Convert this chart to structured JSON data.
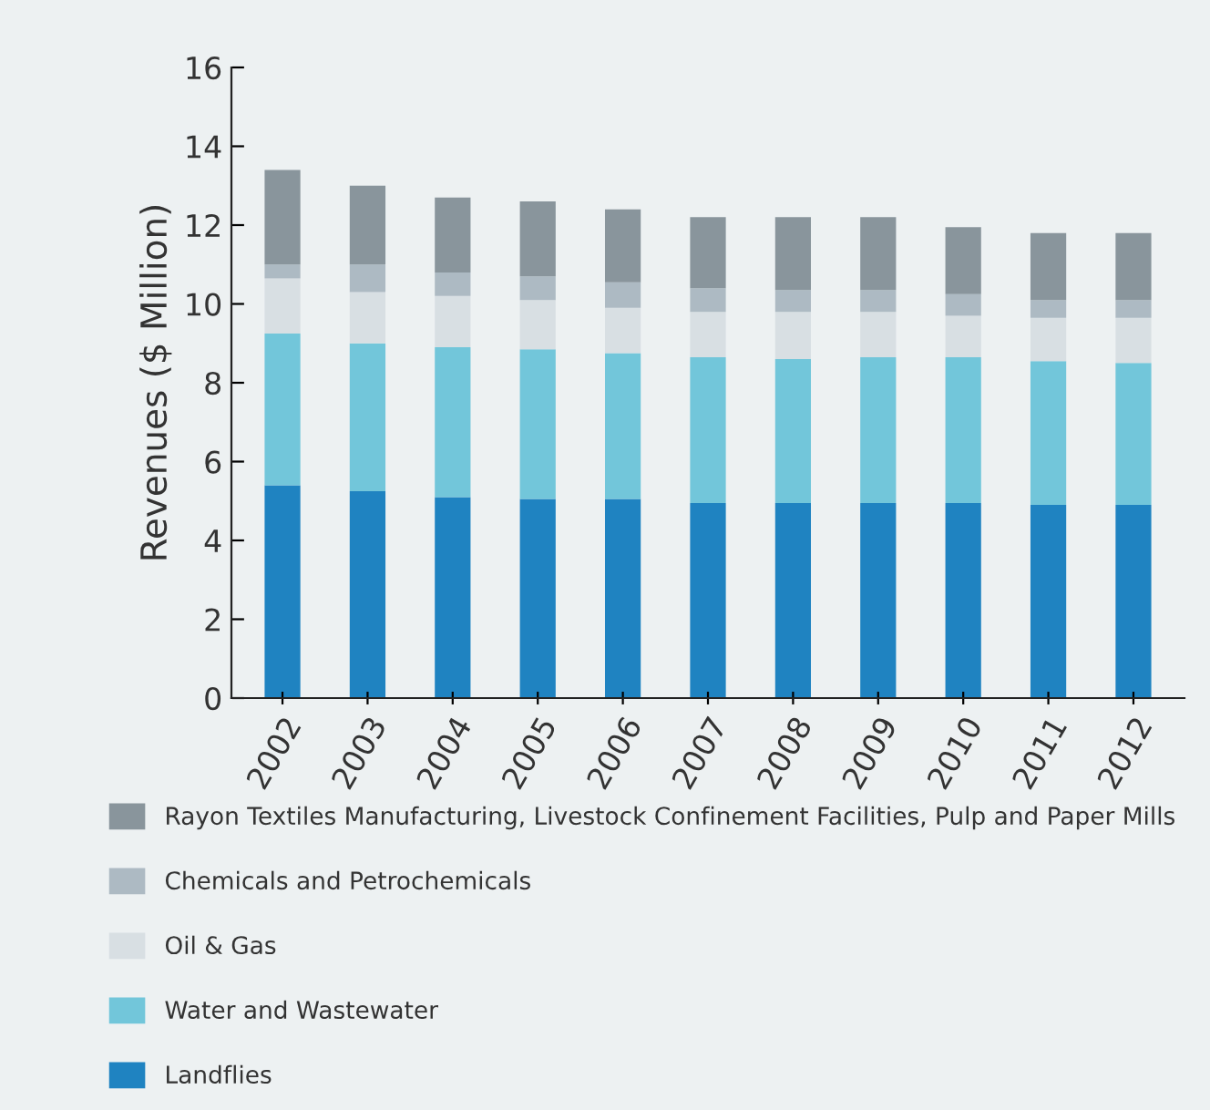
{
  "chart_data": {
    "type": "bar",
    "stacked": true,
    "ylabel": "Revenues ($ Million)",
    "categories": [
      "2002",
      "2003",
      "2004",
      "2005",
      "2006",
      "2007",
      "2008",
      "2009",
      "2010",
      "2011",
      "2012"
    ],
    "series": [
      {
        "name": "Landflies",
        "color": "#1f83c1",
        "values": [
          5.4,
          5.25,
          5.1,
          5.05,
          5.05,
          4.95,
          4.95,
          4.95,
          4.95,
          4.9,
          4.9
        ]
      },
      {
        "name": "Water and Wastewater",
        "color": "#72c6da",
        "values": [
          3.85,
          3.75,
          3.8,
          3.8,
          3.7,
          3.7,
          3.65,
          3.7,
          3.7,
          3.65,
          3.6
        ]
      },
      {
        "name": "Oil & Gas",
        "color": "#d8dfe3",
        "values": [
          1.4,
          1.3,
          1.3,
          1.25,
          1.15,
          1.15,
          1.2,
          1.15,
          1.05,
          1.1,
          1.15
        ]
      },
      {
        "name": "Chemicals and Petrochemicals",
        "color": "#adbac3",
        "values": [
          0.35,
          0.7,
          0.6,
          0.6,
          0.65,
          0.6,
          0.55,
          0.55,
          0.55,
          0.45,
          0.45
        ]
      },
      {
        "name": "Rayon Textiles Manufacturing, Livestock Confinement Facilities, Pulp and Paper Mills",
        "color": "#89959c",
        "values": [
          2.4,
          2.0,
          1.9,
          1.9,
          1.85,
          1.8,
          1.85,
          1.85,
          1.7,
          1.7,
          1.7
        ]
      }
    ],
    "ylim": [
      0,
      16
    ],
    "yticks": [
      0,
      2,
      4,
      6,
      8,
      10,
      12,
      14,
      16
    ],
    "grid": false,
    "legend": "bottom"
  }
}
